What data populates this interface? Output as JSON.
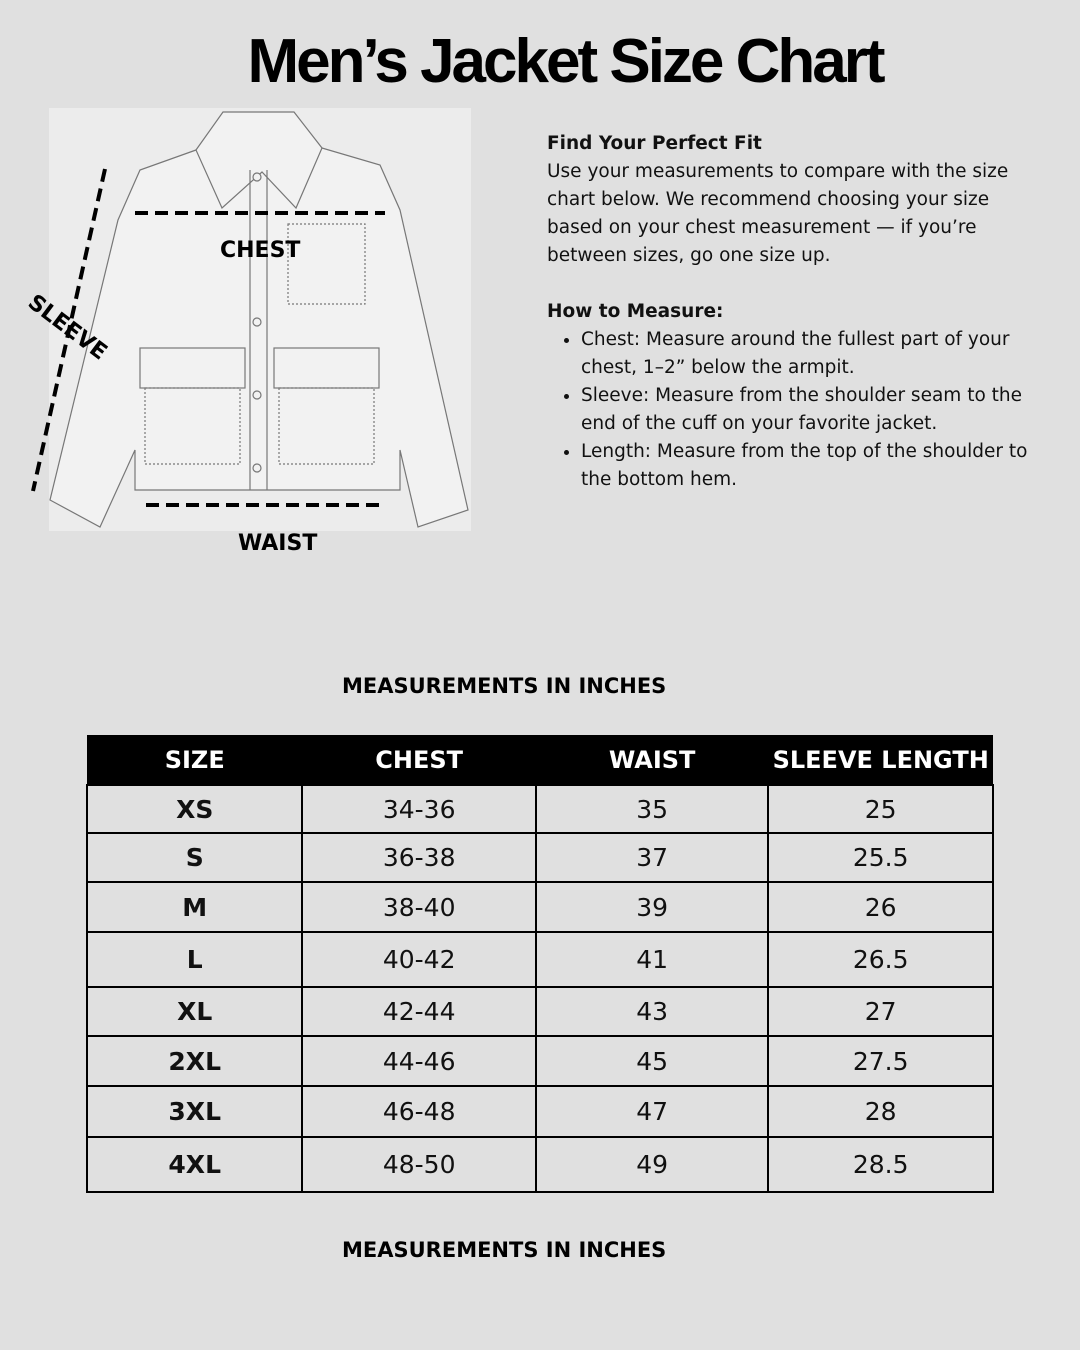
{
  "title": "Men’s Jacket Size Chart",
  "diagram": {
    "chest_label": "CHEST",
    "sleeve_label": "SLEEVE",
    "waist_label": "WAIST"
  },
  "info": {
    "heading": "Find Your Perfect Fit",
    "intro": " Use your measurements to compare with the size chart below. We recommend choosing your size based on your chest measurement — if you’re between sizes, go one size up.",
    "how_heading": "How to Measure:",
    "bullets": [
      "Chest: Measure around the fullest part of your chest, 1–2” below the armpit.",
      "Sleeve: Measure from the shoulder seam to the end of the cuff on your favorite jacket.",
      "Length: Measure from the top of the shoulder to the bottom hem."
    ]
  },
  "caption_top": "MEASUREMENTS IN INCHES",
  "caption_bottom": "MEASUREMENTS IN INCHES",
  "table": {
    "headers": [
      "SIZE",
      "CHEST",
      "WAIST",
      "SLEEVE LENGTH"
    ],
    "rows": [
      [
        "XS",
        "34-36",
        "35",
        "25"
      ],
      [
        "S",
        "36-38",
        "37",
        "25.5"
      ],
      [
        "M",
        "38-40",
        "39",
        "26"
      ],
      [
        "L",
        "40-42",
        "41",
        "26.5"
      ],
      [
        "XL",
        "42-44",
        "43",
        "27"
      ],
      [
        "2XL",
        "44-46",
        "45",
        "27.5"
      ],
      [
        "3XL",
        "46-48",
        "47",
        "28"
      ],
      [
        "4XL",
        "48-50",
        "49",
        "28.5"
      ]
    ]
  }
}
